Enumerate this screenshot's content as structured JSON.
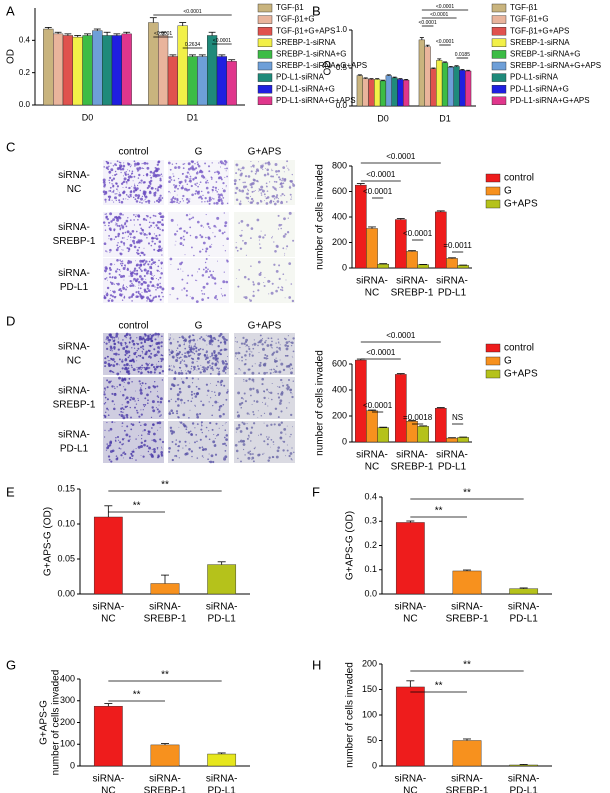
{
  "panel_labels": [
    "A",
    "B",
    "C",
    "D",
    "E",
    "F",
    "G",
    "H"
  ],
  "micrographs": [
    {
      "columns": [
        "control",
        "G",
        "G+APS"
      ],
      "rows": [
        [
          "siRNA-",
          "NC"
        ],
        [
          "siRNA-",
          "SREBP-1"
        ],
        [
          "siRNA-",
          "PD-L1"
        ]
      ]
    },
    {
      "columns": [
        "control",
        "G",
        "G+APS"
      ],
      "rows": [
        [
          "siRNA-",
          "NC"
        ],
        [
          "siRNA-",
          "SREBP-1"
        ],
        [
          "siRNA-",
          "PD-L1"
        ]
      ]
    }
  ],
  "chart_data": [
    {
      "type": "bar",
      "ylabel": "OD",
      "categories": [
        "D0",
        "D1"
      ],
      "ylim": [
        0,
        0.6
      ],
      "yticks": [
        {
          "value": 0,
          "label": "0.0"
        },
        0.2,
        0.4
      ],
      "series": [
        {
          "name": "TGF-β1",
          "color": "#c9b47e",
          "values": [
            0.47,
            0.51
          ],
          "errors": [
            0.01,
            0.03
          ]
        },
        {
          "name": "TGF-β1+G",
          "color": "#e9b49c",
          "values": [
            0.44,
            0.43
          ],
          "errors": [
            0.01,
            0.02
          ]
        },
        {
          "name": "TGF-β1+G+APS",
          "color": "#e0524e",
          "values": [
            0.43,
            0.3
          ],
          "errors": [
            0.01,
            0.01
          ]
        },
        {
          "name": "SREBP-1-siRNA",
          "color": "#f2f048",
          "values": [
            0.42,
            0.49
          ],
          "errors": [
            0.01,
            0.02
          ]
        },
        {
          "name": "SREBP-1-siRNA+G",
          "color": "#3cbc45",
          "values": [
            0.43,
            0.3
          ],
          "errors": [
            0.01,
            0.01
          ]
        },
        {
          "name": "SREBP-1-siRNA+G+APS",
          "color": "#6e9fd8",
          "values": [
            0.46,
            0.3
          ],
          "errors": [
            0.01,
            0.01
          ]
        },
        {
          "name": "PD-L1-siRNA",
          "color": "#1f8a7a",
          "values": [
            0.43,
            0.43
          ],
          "errors": [
            0.02,
            0.02
          ]
        },
        {
          "name": "PD-L1-siRNA+G",
          "color": "#1f1fe0",
          "values": [
            0.43,
            0.3
          ],
          "errors": [
            0.01,
            0.01
          ]
        },
        {
          "name": "PD-L1-siRNA+G+APS",
          "color": "#e0368c",
          "values": [
            0.44,
            0.27
          ],
          "errors": [
            0.01,
            0.01
          ]
        }
      ],
      "annotations": [
        "<0.0001",
        "<0.0001",
        "0.2634",
        "<0.0001"
      ]
    },
    {
      "type": "bar",
      "ylabel": "OD",
      "categories": [
        "D0",
        "D1"
      ],
      "ylim": [
        0,
        1.0
      ],
      "yticks": [
        {
          "value": 0,
          "label": "0.0"
        },
        0.5,
        {
          "value": 1.0,
          "label": "1.0"
        }
      ],
      "series": [
        {
          "name": "TGF-β1",
          "color": "#c9b47e",
          "values": [
            0.4,
            0.87
          ],
          "errors": [
            0.01,
            0.03
          ]
        },
        {
          "name": "TGF-β1+G",
          "color": "#e9b49c",
          "values": [
            0.36,
            0.78
          ],
          "errors": [
            0.01,
            0.02
          ]
        },
        {
          "name": "TGF-β1+G+APS",
          "color": "#e0524e",
          "values": [
            0.35,
            0.49
          ],
          "errors": [
            0.01,
            0.01
          ]
        },
        {
          "name": "SREBP-1-siRNA",
          "color": "#f2f048",
          "values": [
            0.35,
            0.6
          ],
          "errors": [
            0.01,
            0.02
          ]
        },
        {
          "name": "SREBP-1-siRNA+G",
          "color": "#3cbc45",
          "values": [
            0.33,
            0.57
          ],
          "errors": [
            0.01,
            0.01
          ]
        },
        {
          "name": "SREBP-1-siRNA+G+APS",
          "color": "#6e9fd8",
          "values": [
            0.4,
            0.51
          ],
          "errors": [
            0.01,
            0.01
          ]
        },
        {
          "name": "PD-L1-siRNA",
          "color": "#1f8a7a",
          "values": [
            0.37,
            0.52
          ],
          "errors": [
            0.01,
            0.01
          ]
        },
        {
          "name": "PD-L1-siRNA+G",
          "color": "#1f1fe0",
          "values": [
            0.35,
            0.47
          ],
          "errors": [
            0.01,
            0.01
          ]
        },
        {
          "name": "PD-L1-siRNA+G+APS",
          "color": "#e0368c",
          "values": [
            0.34,
            0.46
          ],
          "errors": [
            0.01,
            0.01
          ]
        }
      ],
      "annotations": [
        "<0.0001",
        "<0.0001",
        "<0.0001",
        "<0.0001",
        "0.0185"
      ]
    },
    {
      "type": "bar",
      "ylabel": "number of cells invaded",
      "categories": [
        [
          "siRNA-",
          "NC"
        ],
        [
          "siRNA-",
          "SREBP-1"
        ],
        [
          "siRNA-",
          "PD-L1"
        ]
      ],
      "ylim": [
        0,
        800
      ],
      "yticks": [
        0,
        200,
        400,
        600,
        800
      ],
      "series": [
        {
          "name": "control",
          "color": "#ee1c1c",
          "values": [
            650,
            380,
            440
          ],
          "errors": [
            12,
            8,
            8
          ]
        },
        {
          "name": "G",
          "color": "#f7911e",
          "values": [
            310,
            130,
            75
          ],
          "errors": [
            12,
            6,
            5
          ]
        },
        {
          "name": "G+APS",
          "color": "#b5c21b",
          "values": [
            30,
            25,
            20
          ],
          "errors": [
            4,
            3,
            3
          ]
        }
      ],
      "annotations": [
        "<0.0001",
        "<0.0001",
        "<0.0001",
        "<0.0001",
        "=0.0011"
      ]
    },
    {
      "type": "bar",
      "ylabel": "number of cells invaded",
      "categories": [
        [
          "siRNA-",
          "NC"
        ],
        [
          "siRNA-",
          "SREBP-1"
        ],
        [
          "siRNA-",
          "PD-L1"
        ]
      ],
      "ylim": [
        0,
        600
      ],
      "yticks": [
        0,
        200,
        400,
        600
      ],
      "series": [
        {
          "name": "control",
          "color": "#ee1c1c",
          "values": [
            630,
            520,
            260
          ],
          "errors": [
            8,
            6,
            5
          ]
        },
        {
          "name": "G",
          "color": "#f7911e",
          "values": [
            240,
            160,
            30
          ],
          "errors": [
            6,
            5,
            3
          ]
        },
        {
          "name": "G+APS",
          "color": "#b5c21b",
          "values": [
            110,
            120,
            35
          ],
          "errors": [
            4,
            4,
            3
          ]
        }
      ],
      "annotations": [
        "<0.0001",
        "<0.0001",
        "<0.0001",
        "=0.0018",
        "NS"
      ]
    },
    {
      "type": "bar",
      "ylabel": "G+APS-G (OD)",
      "categories": [
        [
          "siRNA-",
          "NC"
        ],
        [
          "siRNA-",
          "SREBP-1"
        ],
        [
          "siRNA-",
          "PD-L1"
        ]
      ],
      "ylim": [
        0,
        0.15
      ],
      "yticks": [
        {
          "value": 0,
          "label": "0.00"
        },
        0.05,
        {
          "value": 0.1,
          "label": "0.10"
        },
        0.15
      ],
      "values": [
        0.11,
        0.015,
        0.042
      ],
      "errors": [
        0.016,
        0.012,
        0.004
      ],
      "colors": [
        "#ee1c1c",
        "#f7911e",
        "#b5c21b"
      ],
      "annotations": [
        "**",
        "**"
      ]
    },
    {
      "type": "bar",
      "ylabel": "G+APS-G (OD)",
      "categories": [
        [
          "siRNA-",
          "NC"
        ],
        [
          "siRNA-",
          "SREBP-1"
        ],
        [
          "siRNA-",
          "PD-L1"
        ]
      ],
      "ylim": [
        0,
        0.4
      ],
      "yticks": [
        {
          "value": 0,
          "label": "0.0"
        },
        0.1,
        0.2,
        0.3,
        0.4
      ],
      "values": [
        0.295,
        0.095,
        0.022
      ],
      "errors": [
        0.006,
        0.004,
        0.003
      ],
      "colors": [
        "#ee1c1c",
        "#f7911e",
        "#b5c21b"
      ],
      "annotations": [
        "**",
        "**"
      ]
    },
    {
      "type": "bar",
      "ylabel": [
        "G+APS-G",
        "number of cells invaded"
      ],
      "categories": [
        [
          "siRNA-",
          "NC"
        ],
        [
          "siRNA-",
          "SREBP-1"
        ],
        [
          "siRNA-",
          "PD-L1"
        ]
      ],
      "ylim": [
        0,
        400
      ],
      "yticks": [
        0,
        100,
        200,
        300,
        400
      ],
      "values": [
        275,
        97,
        55
      ],
      "errors": [
        12,
        6,
        5
      ],
      "colors": [
        "#ee1c1c",
        "#f7911e",
        "#e6e61c"
      ],
      "annotations": [
        "**",
        "**"
      ]
    },
    {
      "type": "bar",
      "ylabel": "number of cells invaded",
      "categories": [
        [
          "siRNA-",
          "NC"
        ],
        [
          "siRNA-",
          "SREBP-1"
        ],
        [
          "siRNA-",
          "PD-L1"
        ]
      ],
      "ylim": [
        0,
        200
      ],
      "yticks": [
        0,
        50,
        100,
        150,
        200
      ],
      "values": [
        155,
        50,
        2
      ],
      "errors": [
        12,
        3,
        1
      ],
      "colors": [
        "#ee1c1c",
        "#f7911e",
        "#b5c21b"
      ],
      "annotations": [
        "**",
        "**"
      ]
    }
  ]
}
